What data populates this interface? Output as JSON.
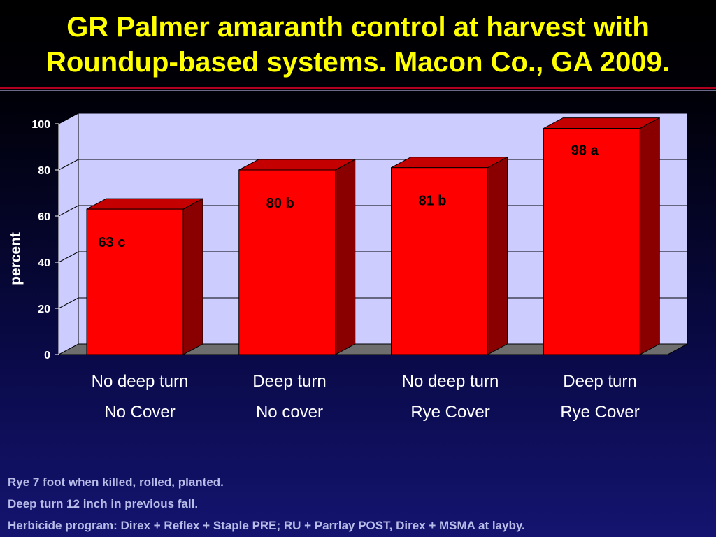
{
  "title": {
    "line1": "GR Palmer amaranth control at harvest with",
    "line2": "Roundup-based systems. Macon Co., GA 2009."
  },
  "colors": {
    "title": "#ffff00",
    "bar_front": "#ff0000",
    "bar_top": "#c40000",
    "bar_side": "#8a0000",
    "plot_wall": "#ccccff",
    "floor": "#6e6e6e"
  },
  "chart_data": {
    "type": "bar",
    "style": "3d",
    "ylabel": "percent",
    "ylim": [
      0,
      100
    ],
    "yticks": [
      "0",
      "20",
      "40",
      "60",
      "80",
      "100"
    ],
    "grid": true,
    "categories": [
      [
        "No deep turn",
        "No Cover"
      ],
      [
        "Deep  turn",
        "No cover"
      ],
      [
        "No deep turn",
        "Rye Cover"
      ],
      [
        "Deep  turn",
        "Rye Cover"
      ]
    ],
    "values": [
      63,
      80,
      81,
      98
    ],
    "data_labels": [
      "63 c",
      "80 b",
      "81 b",
      "98 a"
    ]
  },
  "notes": [
    "Rye 7 foot when killed, rolled, planted.",
    "Deep turn 12 inch in previous fall.",
    "Herbicide program: Direx + Reflex + Staple PRE; RU + Parrlay POST, Direx + MSMA at layby."
  ]
}
